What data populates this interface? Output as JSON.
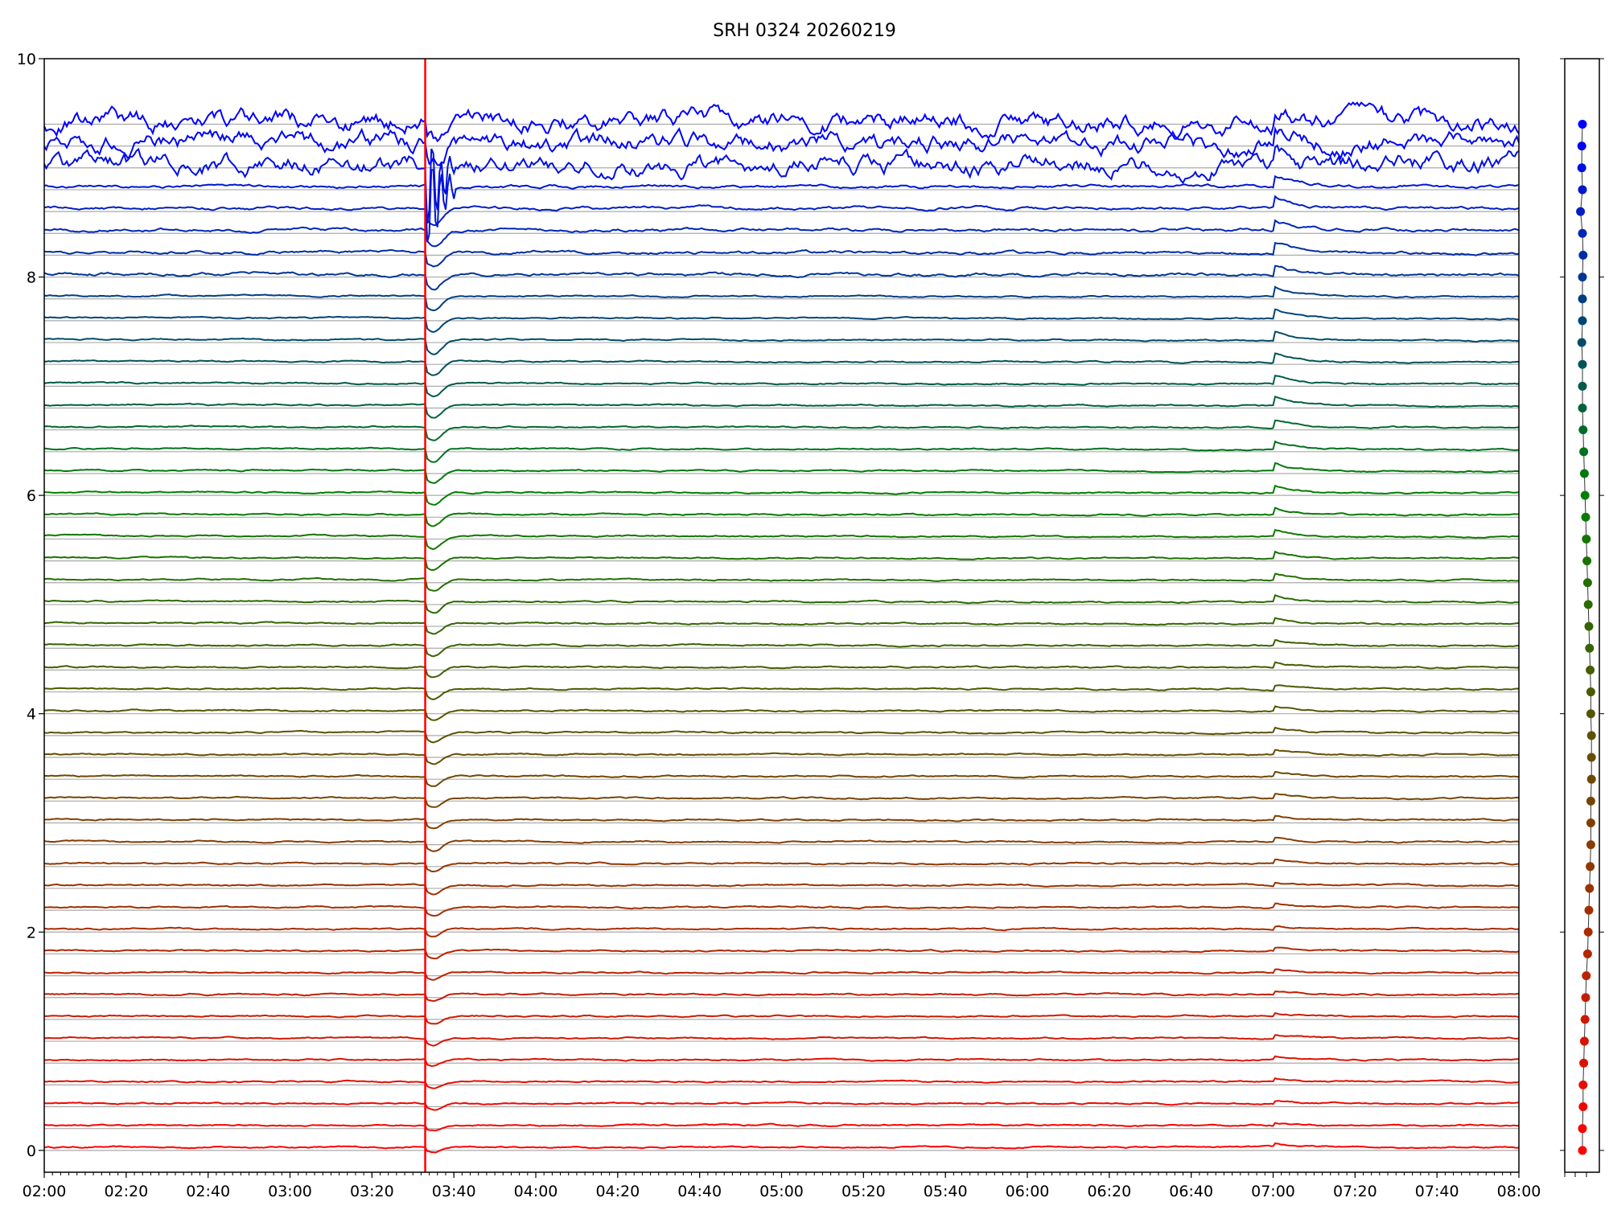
{
  "chart_data": {
    "type": "line",
    "title": "SRH 0324 20260219",
    "xlabel": "",
    "ylabel": "",
    "x_range": [
      "02:00",
      "08:00"
    ],
    "xticks": [
      "02:00",
      "02:20",
      "02:40",
      "03:00",
      "03:20",
      "03:40",
      "04:00",
      "04:20",
      "04:40",
      "05:00",
      "05:20",
      "05:40",
      "06:00",
      "06:20",
      "06:40",
      "07:00",
      "07:20",
      "07:40",
      "08:00"
    ],
    "minor_tick_minutes": 2,
    "ylim": [
      -0.2,
      10
    ],
    "yticks": [
      "0",
      "2",
      "4",
      "6",
      "8",
      "10"
    ],
    "grid": "horizontal gray line at each trace offset",
    "trace_count": 48,
    "trace_offset_step": 0.2,
    "trace_offsets_range": [
      0,
      9.4
    ],
    "color_gradient": [
      "#ff0000",
      "#008000",
      "#0000ff"
    ],
    "marker_line": {
      "time": "03:33",
      "color": "#ff0000"
    },
    "events": [
      {
        "time": "03:33",
        "description_kind": "dip"
      },
      {
        "time": "07:00",
        "description_kind": "bump"
      }
    ],
    "side_panel": {
      "type": "scatter",
      "markers": 48,
      "ylim": [
        -0.2,
        10
      ]
    }
  }
}
